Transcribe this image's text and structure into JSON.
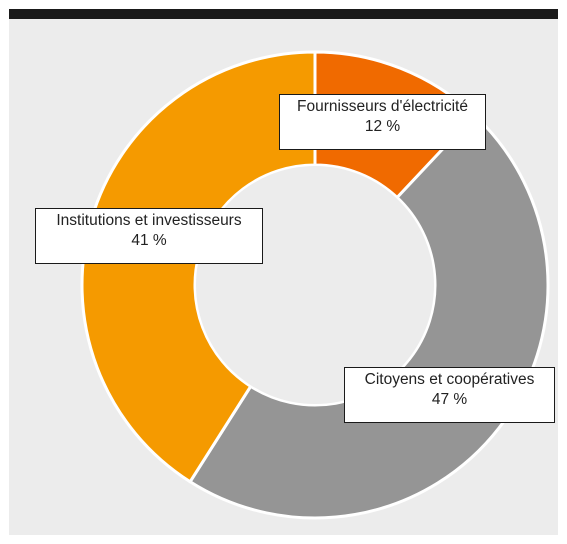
{
  "chart_data": {
    "type": "pie",
    "donut": true,
    "slices": [
      {
        "label": "Fournisseurs d'électricité",
        "value": 12,
        "value_label": "12 %",
        "color": "#f06a00"
      },
      {
        "label": "Citoyens et coopératives",
        "value": 47,
        "value_label": "47 %",
        "color": "#959595"
      },
      {
        "label": "Institutions et investisseurs",
        "value": 41,
        "value_label": "41 %",
        "color": "#f59a00"
      }
    ]
  },
  "colors": {
    "background": "#ececec",
    "top_bar": "#1a1a1a",
    "separator": "#ffffff"
  }
}
